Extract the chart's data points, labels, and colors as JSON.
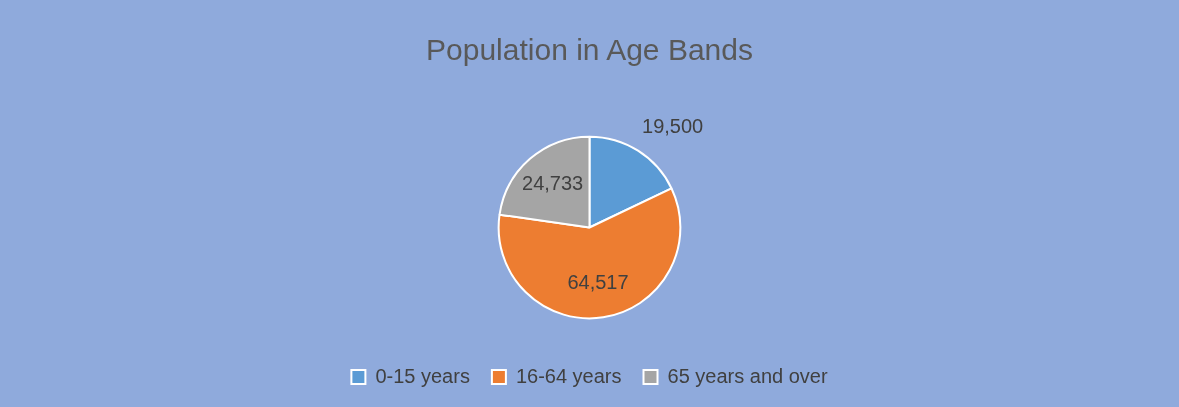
{
  "chart_data": {
    "type": "pie",
    "title": "Population in Age Bands",
    "categories": [
      "0-15 years",
      "16-64 years",
      "65 years and over"
    ],
    "values": [
      19500,
      64517,
      24733
    ],
    "colors": [
      "#5b9bd5",
      "#ed7d31",
      "#a5a5a5"
    ],
    "value_labels": [
      "19,500",
      "64,517",
      "24,733"
    ],
    "legend": "bottom"
  }
}
